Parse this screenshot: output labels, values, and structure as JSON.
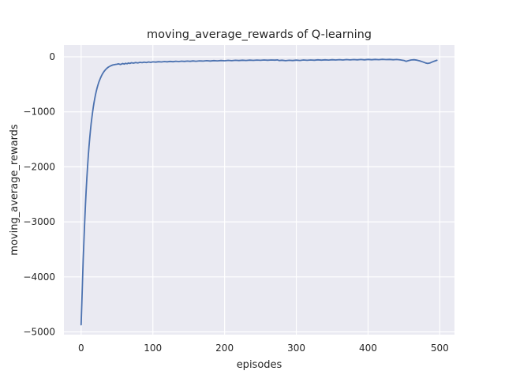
{
  "colors": {
    "figure_bg": "#ffffff",
    "axes_bg": "#eaeaf2",
    "grid": "#ffffff",
    "line": "#4c72b0",
    "text": "#262626"
  },
  "chart_data": {
    "type": "line",
    "title": "moving_average_rewards of Q-learning",
    "xlabel": "episodes",
    "ylabel": "moving_average_rewards",
    "xlim": [
      -24,
      520.5
    ],
    "ylim": [
      -5050,
      215
    ],
    "xticks": [
      0,
      100,
      200,
      300,
      400,
      500
    ],
    "yticks": [
      0,
      -1000,
      -2000,
      -3000,
      -4000,
      -5000
    ],
    "grid": true,
    "legend": "none",
    "series": [
      {
        "name": "moving_average_rewards",
        "color": "#4c72b0",
        "x": [
          0,
          1,
          2,
          3,
          4,
          5,
          6,
          7,
          8,
          9,
          10,
          11,
          12,
          13,
          14,
          15,
          16,
          17,
          18,
          19,
          20,
          21,
          22,
          23,
          24,
          25,
          26,
          27,
          28,
          29,
          30,
          32,
          34,
          36,
          38,
          40,
          42,
          44,
          46,
          48,
          50,
          52,
          55,
          58,
          60,
          62,
          64,
          66,
          68,
          70,
          73,
          76,
          79,
          82,
          85,
          88,
          91,
          94,
          97,
          100,
          104,
          108,
          112,
          116,
          120,
          124,
          128,
          132,
          136,
          140,
          144,
          148,
          152,
          156,
          160,
          165,
          170,
          175,
          180,
          185,
          190,
          195,
          200,
          205,
          210,
          215,
          220,
          225,
          230,
          235,
          240,
          245,
          250,
          255,
          260,
          265,
          270,
          274,
          276,
          280,
          285,
          290,
          295,
          300,
          305,
          310,
          315,
          320,
          325,
          330,
          335,
          340,
          345,
          350,
          355,
          360,
          365,
          370,
          375,
          380,
          385,
          390,
          395,
          400,
          405,
          410,
          415,
          420,
          425,
          430,
          435,
          440,
          445,
          450,
          453,
          456,
          460,
          464,
          468,
          472,
          476,
          480,
          483,
          486,
          489,
          492,
          496
        ],
        "y": [
          -4870,
          -4480,
          -4060,
          -3660,
          -3300,
          -2980,
          -2690,
          -2430,
          -2200,
          -1990,
          -1800,
          -1630,
          -1480,
          -1340,
          -1215,
          -1100,
          -1000,
          -910,
          -830,
          -757,
          -692,
          -633,
          -580,
          -532,
          -489,
          -450,
          -415,
          -383,
          -354,
          -328,
          -305,
          -266,
          -234,
          -208,
          -187,
          -172,
          -160,
          -150,
          -143,
          -138,
          -135,
          -128,
          -140,
          -122,
          -132,
          -118,
          -126,
          -112,
          -120,
          -108,
          -115,
          -104,
          -111,
          -100,
          -107,
          -97,
          -104,
          -94,
          -100,
          -92,
          -97,
          -89,
          -94,
          -86,
          -91,
          -84,
          -89,
          -81,
          -86,
          -79,
          -84,
          -77,
          -82,
          -75,
          -80,
          -73,
          -78,
          -71,
          -76,
          -69,
          -74,
          -67,
          -72,
          -65,
          -70,
          -63,
          -68,
          -62,
          -66,
          -60,
          -65,
          -59,
          -63,
          -58,
          -62,
          -57,
          -61,
          -56,
          -68,
          -62,
          -70,
          -63,
          -68,
          -60,
          -66,
          -58,
          -64,
          -57,
          -62,
          -55,
          -60,
          -54,
          -59,
          -53,
          -58,
          -52,
          -57,
          -51,
          -56,
          -50,
          -55,
          -49,
          -54,
          -48,
          -53,
          -47,
          -52,
          -46,
          -51,
          -48,
          -53,
          -49,
          -56,
          -66,
          -82,
          -71,
          -58,
          -53,
          -61,
          -74,
          -91,
          -111,
          -121,
          -114,
          -96,
          -81,
          -63
        ]
      }
    ]
  }
}
